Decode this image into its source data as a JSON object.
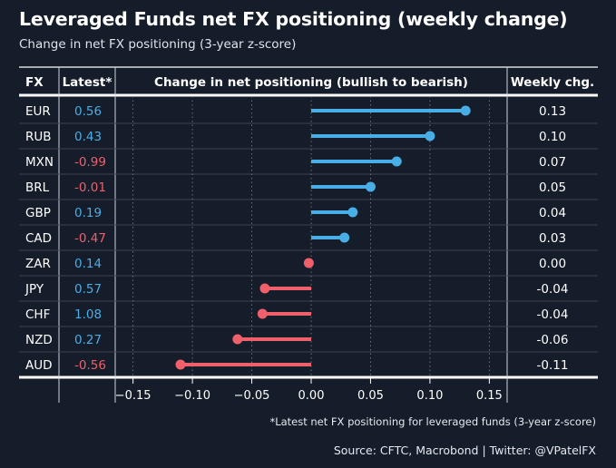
{
  "title": "Leveraged Funds net FX positioning (weekly change)",
  "subtitle": "Change in net FX positioning (3-year z-score)",
  "note": "*Latest net FX positioning for leveraged funds (3-year z-score)",
  "source": "Source: CFTC, Macrobond | Twitter: @VPatelFX",
  "table": {
    "col_fx": "FX",
    "col_latest": "Latest*",
    "col_change": "Change in net positioning (bullish to bearish)",
    "col_weekly": "Weekly chg."
  },
  "colors": {
    "bullish": "#4aaee6",
    "bearish": "#f0606b",
    "background": "#151c2a"
  },
  "chart_data": {
    "type": "bar",
    "orientation": "horizontal-lollipop",
    "categories": [
      "EUR",
      "RUB",
      "MXN",
      "BRL",
      "GBP",
      "CAD",
      "ZAR",
      "JPY",
      "CHF",
      "NZD",
      "AUD"
    ],
    "latest": [
      "0.56",
      "0.43",
      "-0.99",
      "-0.01",
      "0.19",
      "-0.47",
      "0.14",
      "0.57",
      "1.08",
      "0.27",
      "-0.56"
    ],
    "weekly_labels": [
      "0.13",
      "0.10",
      "0.07",
      "0.05",
      "0.04",
      "0.03",
      "0.00",
      "-0.04",
      "-0.04",
      "-0.06",
      "-0.11"
    ],
    "values": [
      0.13,
      0.1,
      0.072,
      0.05,
      0.035,
      0.028,
      -0.002,
      -0.039,
      -0.041,
      -0.062,
      -0.11
    ],
    "xlim": [
      -0.165,
      0.165
    ],
    "xticks": [
      -0.15,
      -0.1,
      -0.05,
      0.0,
      0.05,
      0.1,
      0.15
    ],
    "xtick_labels": [
      "−0.15",
      "−0.10",
      "−0.05",
      "0.00",
      "0.05",
      "0.10",
      "0.15"
    ],
    "grid": "vertical dotted"
  }
}
